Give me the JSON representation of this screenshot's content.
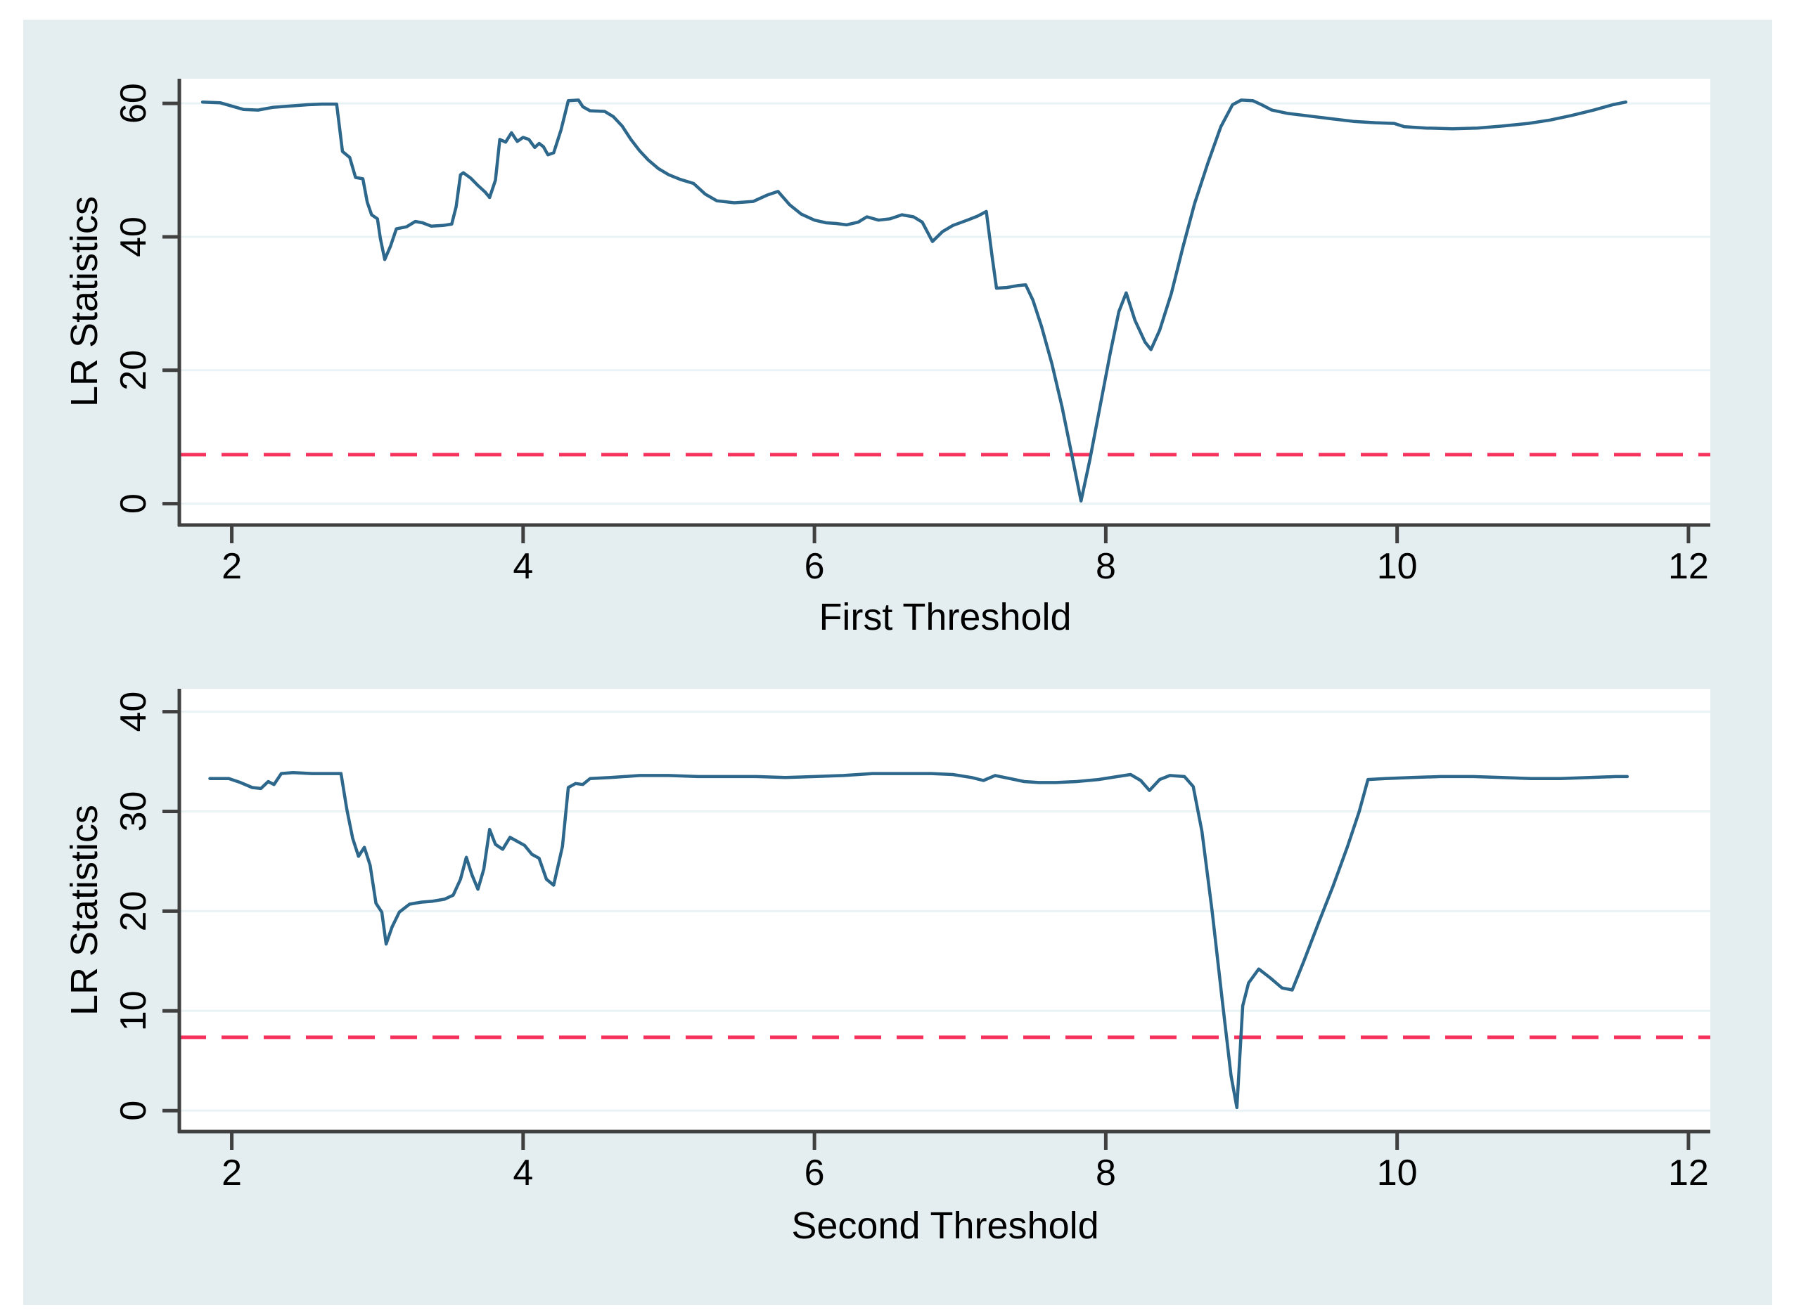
{
  "figure": {
    "background_color": "#e4eef0",
    "plot_background": "#ffffff",
    "page_background": "#ffffff"
  },
  "colors": {
    "lr_line": "#2d688c",
    "critical_line": "#f5315c",
    "axis": "#404040",
    "gridline": "#e9f3f5",
    "text": "#000000"
  },
  "chart_data": [
    {
      "type": "line",
      "title": "",
      "xlabel": "First Threshold",
      "ylabel": "LR Statistics",
      "xticks": [
        2,
        4,
        6,
        8,
        10,
        12
      ],
      "yticks": [
        0,
        20,
        40,
        60
      ],
      "xlim": [
        1.64,
        12.15
      ],
      "ylim": [
        -3.2,
        63.7
      ],
      "grid": true,
      "legend_position": "none",
      "critical_value": 7.35,
      "series": [
        {
          "name": "LR statistics",
          "points": [
            [
              1.8,
              60.2
            ],
            [
              1.92,
              60.1
            ],
            [
              2.0,
              59.6
            ],
            [
              2.08,
              59.1
            ],
            [
              2.18,
              59.0
            ],
            [
              2.28,
              59.4
            ],
            [
              2.4,
              59.6
            ],
            [
              2.52,
              59.8
            ],
            [
              2.62,
              59.9
            ],
            [
              2.72,
              59.9
            ],
            [
              2.76,
              52.8
            ],
            [
              2.81,
              51.9
            ],
            [
              2.85,
              48.9
            ],
            [
              2.9,
              48.7
            ],
            [
              2.93,
              45.2
            ],
            [
              2.96,
              43.3
            ],
            [
              3.0,
              42.7
            ],
            [
              3.02,
              39.8
            ],
            [
              3.05,
              36.6
            ],
            [
              3.09,
              38.6
            ],
            [
              3.13,
              41.2
            ],
            [
              3.2,
              41.5
            ],
            [
              3.26,
              42.3
            ],
            [
              3.31,
              42.1
            ],
            [
              3.37,
              41.6
            ],
            [
              3.45,
              41.7
            ],
            [
              3.51,
              41.9
            ],
            [
              3.54,
              44.5
            ],
            [
              3.57,
              49.3
            ],
            [
              3.59,
              49.6
            ],
            [
              3.64,
              48.8
            ],
            [
              3.69,
              47.7
            ],
            [
              3.74,
              46.7
            ],
            [
              3.77,
              45.9
            ],
            [
              3.81,
              48.5
            ],
            [
              3.84,
              54.6
            ],
            [
              3.88,
              54.2
            ],
            [
              3.92,
              55.6
            ],
            [
              3.96,
              54.3
            ],
            [
              4.0,
              54.9
            ],
            [
              4.04,
              54.6
            ],
            [
              4.08,
              53.4
            ],
            [
              4.11,
              54.0
            ],
            [
              4.14,
              53.5
            ],
            [
              4.17,
              52.3
            ],
            [
              4.21,
              52.6
            ],
            [
              4.26,
              56.0
            ],
            [
              4.31,
              60.4
            ],
            [
              4.38,
              60.5
            ],
            [
              4.41,
              59.5
            ],
            [
              4.46,
              58.9
            ],
            [
              4.56,
              58.8
            ],
            [
              4.62,
              58.0
            ],
            [
              4.68,
              56.6
            ],
            [
              4.74,
              54.6
            ],
            [
              4.8,
              52.9
            ],
            [
              4.86,
              51.5
            ],
            [
              4.93,
              50.2
            ],
            [
              5.0,
              49.3
            ],
            [
              5.08,
              48.6
            ],
            [
              5.17,
              48.0
            ],
            [
              5.25,
              46.4
            ],
            [
              5.33,
              45.4
            ],
            [
              5.45,
              45.1
            ],
            [
              5.58,
              45.3
            ],
            [
              5.68,
              46.3
            ],
            [
              5.75,
              46.8
            ],
            [
              5.83,
              44.8
            ],
            [
              5.91,
              43.4
            ],
            [
              6.0,
              42.5
            ],
            [
              6.08,
              42.1
            ],
            [
              6.15,
              42.0
            ],
            [
              6.22,
              41.8
            ],
            [
              6.3,
              42.2
            ],
            [
              6.36,
              43.0
            ],
            [
              6.44,
              42.5
            ],
            [
              6.52,
              42.7
            ],
            [
              6.6,
              43.3
            ],
            [
              6.68,
              43.0
            ],
            [
              6.74,
              42.2
            ],
            [
              6.81,
              39.3
            ],
            [
              6.88,
              40.8
            ],
            [
              6.95,
              41.7
            ],
            [
              7.05,
              42.5
            ],
            [
              7.12,
              43.1
            ],
            [
              7.18,
              43.8
            ],
            [
              7.22,
              37.0
            ],
            [
              7.25,
              32.3
            ],
            [
              7.32,
              32.4
            ],
            [
              7.4,
              32.7
            ],
            [
              7.45,
              32.8
            ],
            [
              7.5,
              30.5
            ],
            [
              7.56,
              26.5
            ],
            [
              7.63,
              21.0
            ],
            [
              7.7,
              14.5
            ],
            [
              7.77,
              7.0
            ],
            [
              7.83,
              0.4
            ],
            [
              7.89,
              6.5
            ],
            [
              7.96,
              14.5
            ],
            [
              8.03,
              22.5
            ],
            [
              8.09,
              28.8
            ],
            [
              8.14,
              31.6
            ],
            [
              8.2,
              27.5
            ],
            [
              8.27,
              24.2
            ],
            [
              8.31,
              23.1
            ],
            [
              8.37,
              26.0
            ],
            [
              8.45,
              31.5
            ],
            [
              8.53,
              38.5
            ],
            [
              8.61,
              45.0
            ],
            [
              8.7,
              51.0
            ],
            [
              8.79,
              56.5
            ],
            [
              8.87,
              59.8
            ],
            [
              8.93,
              60.5
            ],
            [
              9.01,
              60.4
            ],
            [
              9.07,
              59.8
            ],
            [
              9.14,
              59.0
            ],
            [
              9.25,
              58.5
            ],
            [
              9.4,
              58.1
            ],
            [
              9.55,
              57.7
            ],
            [
              9.7,
              57.3
            ],
            [
              9.85,
              57.1
            ],
            [
              9.98,
              57.0
            ],
            [
              10.05,
              56.5
            ],
            [
              10.2,
              56.3
            ],
            [
              10.38,
              56.2
            ],
            [
              10.55,
              56.3
            ],
            [
              10.72,
              56.6
            ],
            [
              10.9,
              57.0
            ],
            [
              11.05,
              57.5
            ],
            [
              11.2,
              58.2
            ],
            [
              11.35,
              59.0
            ],
            [
              11.48,
              59.8
            ],
            [
              11.57,
              60.2
            ]
          ]
        },
        {
          "name": "critical value (dashed)",
          "style": "dashed",
          "constant_y": 7.35
        }
      ]
    },
    {
      "type": "line",
      "title": "",
      "xlabel": "Second Threshold",
      "ylabel": "LR Statistics",
      "xticks": [
        2,
        4,
        6,
        8,
        10,
        12
      ],
      "yticks": [
        0,
        10,
        20,
        30,
        40
      ],
      "xlim": [
        1.64,
        12.15
      ],
      "ylim": [
        -2.1,
        42.3
      ],
      "grid": true,
      "legend_position": "none",
      "critical_value": 7.35,
      "series": [
        {
          "name": "LR statistics",
          "points": [
            [
              1.85,
              33.3
            ],
            [
              1.98,
              33.3
            ],
            [
              2.06,
              32.9
            ],
            [
              2.14,
              32.4
            ],
            [
              2.2,
              32.3
            ],
            [
              2.25,
              33.0
            ],
            [
              2.29,
              32.7
            ],
            [
              2.34,
              33.8
            ],
            [
              2.42,
              33.9
            ],
            [
              2.55,
              33.8
            ],
            [
              2.68,
              33.8
            ],
            [
              2.75,
              33.8
            ],
            [
              2.79,
              30.2
            ],
            [
              2.83,
              27.3
            ],
            [
              2.87,
              25.5
            ],
            [
              2.91,
              26.4
            ],
            [
              2.95,
              24.6
            ],
            [
              2.99,
              20.8
            ],
            [
              3.03,
              19.9
            ],
            [
              3.06,
              16.7
            ],
            [
              3.1,
              18.4
            ],
            [
              3.15,
              19.9
            ],
            [
              3.22,
              20.7
            ],
            [
              3.3,
              20.9
            ],
            [
              3.38,
              21.0
            ],
            [
              3.46,
              21.2
            ],
            [
              3.52,
              21.6
            ],
            [
              3.57,
              23.2
            ],
            [
              3.61,
              25.4
            ],
            [
              3.65,
              23.6
            ],
            [
              3.69,
              22.2
            ],
            [
              3.73,
              24.2
            ],
            [
              3.77,
              28.2
            ],
            [
              3.81,
              26.7
            ],
            [
              3.86,
              26.2
            ],
            [
              3.91,
              27.4
            ],
            [
              3.96,
              27.0
            ],
            [
              4.01,
              26.6
            ],
            [
              4.06,
              25.7
            ],
            [
              4.11,
              25.3
            ],
            [
              4.16,
              23.2
            ],
            [
              4.21,
              22.6
            ],
            [
              4.27,
              26.5
            ],
            [
              4.31,
              32.4
            ],
            [
              4.36,
              32.8
            ],
            [
              4.41,
              32.7
            ],
            [
              4.46,
              33.3
            ],
            [
              4.6,
              33.4
            ],
            [
              4.8,
              33.6
            ],
            [
              5.0,
              33.6
            ],
            [
              5.2,
              33.5
            ],
            [
              5.4,
              33.5
            ],
            [
              5.6,
              33.5
            ],
            [
              5.8,
              33.4
            ],
            [
              6.0,
              33.5
            ],
            [
              6.2,
              33.6
            ],
            [
              6.4,
              33.8
            ],
            [
              6.6,
              33.8
            ],
            [
              6.8,
              33.8
            ],
            [
              6.95,
              33.7
            ],
            [
              7.08,
              33.4
            ],
            [
              7.16,
              33.1
            ],
            [
              7.24,
              33.6
            ],
            [
              7.34,
              33.3
            ],
            [
              7.44,
              33.0
            ],
            [
              7.54,
              32.9
            ],
            [
              7.66,
              32.9
            ],
            [
              7.8,
              33.0
            ],
            [
              7.95,
              33.2
            ],
            [
              8.08,
              33.5
            ],
            [
              8.17,
              33.7
            ],
            [
              8.24,
              33.1
            ],
            [
              8.3,
              32.1
            ],
            [
              8.37,
              33.2
            ],
            [
              8.44,
              33.6
            ],
            [
              8.54,
              33.5
            ],
            [
              8.6,
              32.5
            ],
            [
              8.66,
              28.0
            ],
            [
              8.73,
              20.0
            ],
            [
              8.8,
              11.0
            ],
            [
              8.86,
              3.5
            ],
            [
              8.9,
              0.3
            ],
            [
              8.94,
              10.5
            ],
            [
              8.98,
              12.8
            ],
            [
              9.05,
              14.2
            ],
            [
              9.13,
              13.3
            ],
            [
              9.21,
              12.3
            ],
            [
              9.28,
              12.1
            ],
            [
              9.36,
              15.0
            ],
            [
              9.46,
              18.8
            ],
            [
              9.56,
              22.5
            ],
            [
              9.66,
              26.5
            ],
            [
              9.74,
              30.0
            ],
            [
              9.8,
              33.2
            ],
            [
              9.92,
              33.3
            ],
            [
              10.1,
              33.4
            ],
            [
              10.3,
              33.5
            ],
            [
              10.52,
              33.5
            ],
            [
              10.72,
              33.4
            ],
            [
              10.92,
              33.3
            ],
            [
              11.12,
              33.3
            ],
            [
              11.32,
              33.4
            ],
            [
              11.5,
              33.5
            ],
            [
              11.58,
              33.5
            ]
          ]
        },
        {
          "name": "critical value (dashed)",
          "style": "dashed",
          "constant_y": 7.35
        }
      ]
    }
  ]
}
